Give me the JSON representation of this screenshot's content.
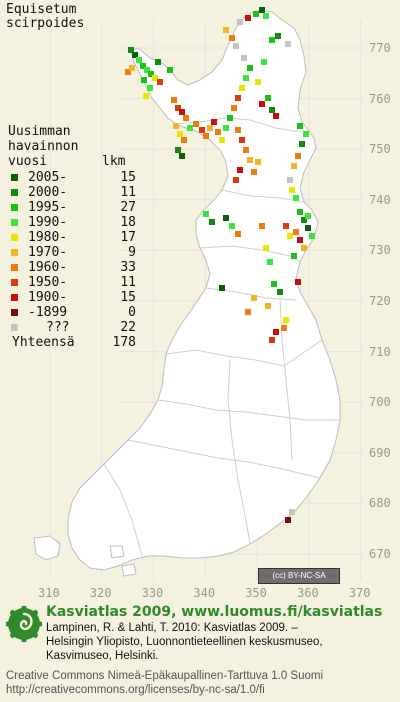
{
  "species": [
    "Equisetum",
    "scirpoides"
  ],
  "legend": {
    "title_lines": [
      "Uusimman",
      "havainnon"
    ],
    "col_period": "vuosi",
    "col_count": "lkm",
    "items": [
      {
        "label": "2005-",
        "count": "15",
        "color": "#0b5f0b"
      },
      {
        "label": "2000-",
        "count": "11",
        "color": "#118a11"
      },
      {
        "label": "1995-",
        "count": "27",
        "color": "#19c119"
      },
      {
        "label": "1990-",
        "count": "18",
        "color": "#3ee43e"
      },
      {
        "label": "1980-",
        "count": "17",
        "color": "#e6e600"
      },
      {
        "label": "1970-",
        "count": "9",
        "color": "#f0b428"
      },
      {
        "label": "1960-",
        "count": "33",
        "color": "#ee7a10"
      },
      {
        "label": "1950-",
        "count": "11",
        "color": "#dd3a0a"
      },
      {
        "label": "1900-",
        "count": "15",
        "color": "#c80e0e"
      },
      {
        "label": "-1899",
        "count": "0",
        "color": "#7a0c0c"
      },
      {
        "label": "???",
        "count": "22",
        "color": "#c4c4c4"
      }
    ],
    "total_label": "Yhteensä",
    "total_count": "178"
  },
  "axis": {
    "y_labels": [
      "770",
      "760",
      "750",
      "740",
      "730",
      "720",
      "710",
      "700",
      "690",
      "680",
      "670"
    ],
    "x_labels": [
      "310",
      "320",
      "330",
      "340",
      "350",
      "360",
      "370"
    ]
  },
  "map": {
    "background": "#f4f1df",
    "land_color": "#ffffff",
    "border_color": "#bdbdbd",
    "grid_color": "#e3e3e3"
  },
  "license_badge": "BY-NC-SA",
  "footer": {
    "title": "Kasviatlas 2009, www.luomus.fi/kasviatlas",
    "title_color": "#2f8a2c",
    "citation_lines": [
      "Lampinen, R. & Lahti, T. 2010: Kasviatlas 2009. –",
      "Helsingin Yliopisto, Luonnontieteellinen keskusmuseo,",
      "Kasvimuseo, Helsinki."
    ],
    "license_lines": [
      "Creative Commons Nimeä-Epäkaupallinen-Tarttuva 1.0 Suomi",
      "http://creativecommons.org/licenses/by-nc-sa/1.0/fi"
    ]
  }
}
